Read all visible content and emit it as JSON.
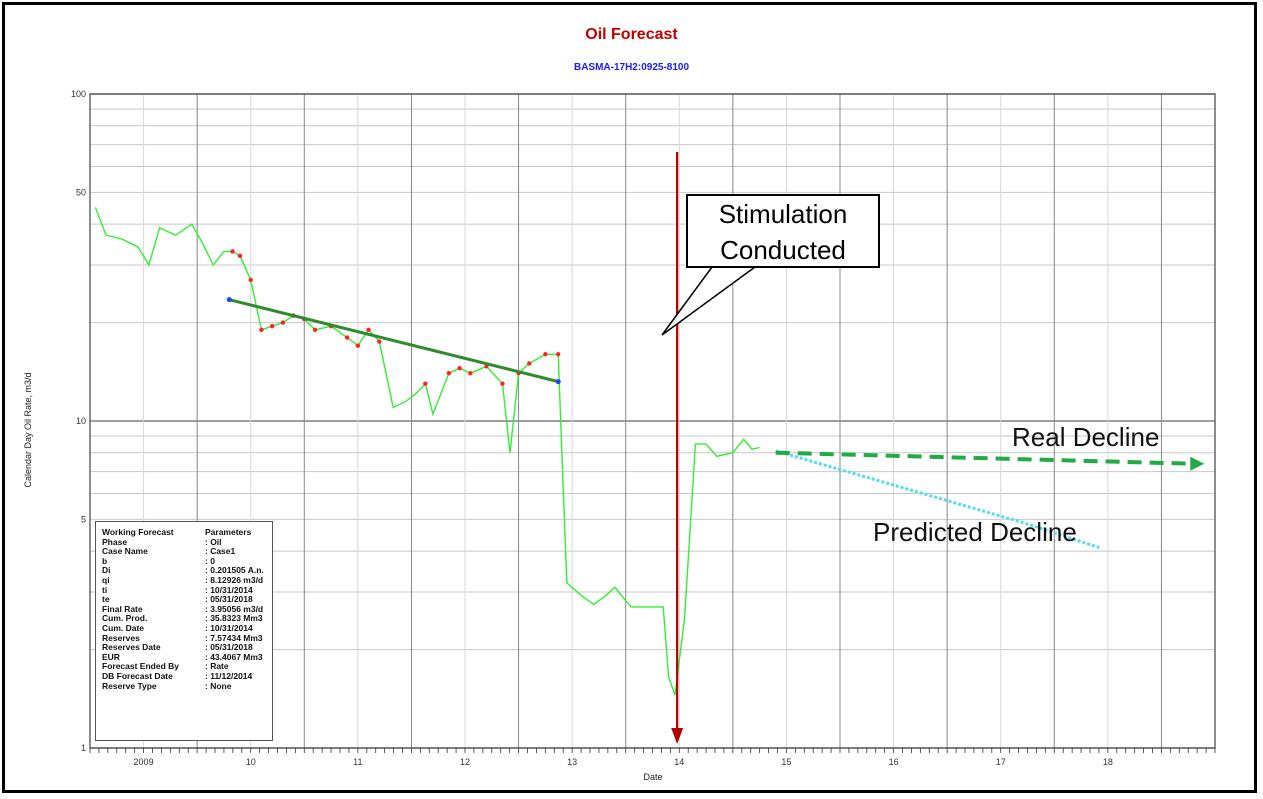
{
  "chart_data": {
    "type": "line",
    "title": "Oil Forecast",
    "subtitle": "BASMA-17H2:0925-8100",
    "xlabel": "Date",
    "ylabel": "Calendar Day Oil Rate, m3/d",
    "y_scale": "log",
    "ylim": [
      1,
      100
    ],
    "xlim": [
      2008.5,
      2019.0
    ],
    "y_tick_labels": [
      "1",
      "5",
      "10",
      "50",
      "100"
    ],
    "x_tick_labels": [
      "2009",
      "10",
      "11",
      "12",
      "13",
      "14",
      "15",
      "16",
      "17",
      "18"
    ],
    "series": [
      {
        "color": "#33ee33",
        "points": [
          [
            2008.55,
            45
          ],
          [
            2008.65,
            37
          ],
          [
            2008.8,
            36
          ],
          [
            2008.95,
            34
          ],
          [
            2009.05,
            30
          ],
          [
            2009.15,
            39
          ],
          [
            2009.3,
            37
          ],
          [
            2009.45,
            40
          ],
          [
            2009.55,
            35
          ],
          [
            2009.65,
            30
          ],
          [
            2009.75,
            33
          ],
          [
            2009.83,
            33
          ],
          [
            2009.9,
            32
          ],
          [
            2010.0,
            27
          ],
          [
            2010.1,
            19
          ],
          [
            2010.2,
            19.5
          ],
          [
            2010.3,
            20
          ],
          [
            2010.4,
            21
          ],
          [
            2010.5,
            20.5
          ],
          [
            2010.6,
            19
          ],
          [
            2010.75,
            19.5
          ],
          [
            2010.9,
            18
          ],
          [
            2011.0,
            17
          ],
          [
            2011.1,
            19
          ],
          [
            2011.2,
            17.5
          ],
          [
            2011.33,
            11
          ],
          [
            2011.45,
            11.5
          ],
          [
            2011.55,
            12.2
          ],
          [
            2011.63,
            13
          ],
          [
            2011.7,
            10.5
          ],
          [
            2011.85,
            14
          ],
          [
            2011.95,
            14.5
          ],
          [
            2012.05,
            14
          ],
          [
            2012.2,
            14.7
          ],
          [
            2012.35,
            13
          ],
          [
            2012.42,
            8
          ],
          [
            2012.5,
            14
          ],
          [
            2012.6,
            15
          ],
          [
            2012.75,
            16
          ],
          [
            2012.87,
            16
          ],
          [
            2012.95,
            3.2
          ],
          [
            2013.1,
            2.9
          ],
          [
            2013.2,
            2.75
          ],
          [
            2013.3,
            2.9
          ],
          [
            2013.4,
            3.1
          ],
          [
            2013.47,
            2.9
          ],
          [
            2013.55,
            2.7
          ],
          [
            2013.75,
            2.7
          ],
          [
            2013.85,
            2.7
          ],
          [
            2013.9,
            1.65
          ],
          [
            2013.96,
            1.45
          ],
          [
            2014.05,
            2.5
          ],
          [
            2014.15,
            8.5
          ],
          [
            2014.25,
            8.5
          ],
          [
            2014.35,
            7.8
          ],
          [
            2014.5,
            8.0
          ],
          [
            2014.6,
            8.8
          ],
          [
            2014.68,
            8.2
          ],
          [
            2014.75,
            8.3
          ]
        ]
      },
      {
        "color": "#ff2222",
        "points": [
          [
            2009.83,
            33
          ],
          [
            2009.9,
            32
          ],
          [
            2010.0,
            27
          ],
          [
            2010.1,
            19
          ],
          [
            2010.2,
            19.5
          ],
          [
            2010.3,
            20
          ],
          [
            2010.4,
            21
          ],
          [
            2010.5,
            20.5
          ],
          [
            2010.6,
            19
          ],
          [
            2010.75,
            19.5
          ],
          [
            2010.9,
            18
          ],
          [
            2011.0,
            17
          ],
          [
            2011.1,
            19
          ],
          [
            2011.2,
            17.5
          ],
          [
            2011.63,
            13
          ],
          [
            2011.85,
            14
          ],
          [
            2011.95,
            14.5
          ],
          [
            2012.05,
            14
          ],
          [
            2012.2,
            14.7
          ],
          [
            2012.35,
            13
          ],
          [
            2012.5,
            14
          ],
          [
            2012.6,
            15
          ],
          [
            2012.75,
            16
          ],
          [
            2012.87,
            16
          ]
        ]
      },
      {
        "color": "#2e8b2e",
        "points": [
          [
            2009.8,
            23.5
          ],
          [
            2012.87,
            13.2
          ]
        ]
      },
      {
        "color": "#55dde8",
        "points": [
          [
            2014.9,
            8.1
          ],
          [
            2017.2,
            4.9
          ],
          [
            2017.92,
            4.1
          ]
        ]
      }
    ],
    "legend": null,
    "annotations": [
      {
        "text": "Stimulation Conducted",
        "type": "callout"
      },
      {
        "text": "Real Decline",
        "type": "arrow"
      },
      {
        "text": "Predicted Decline",
        "type": "label"
      }
    ],
    "event_marker_x": 2013.98,
    "real_decline_points": [
      [
        2014.9,
        8.0
      ],
      [
        2018.9,
        7.4
      ]
    ]
  },
  "callouts": {
    "stim_line1": "Stimulation",
    "stim_line2": "Conducted",
    "real_decline": "Real Decline",
    "predicted_decline": "Predicted Decline"
  },
  "params": [
    {
      "k": "Working Forecast",
      "v": "Parameters"
    },
    {
      "k": "Phase",
      "v": ": Oil"
    },
    {
      "k": "Case Name",
      "v": ": Case1"
    },
    {
      "k": "b",
      "v": ": 0"
    },
    {
      "k": "Di",
      "v": ": 0.201505 A.n."
    },
    {
      "k": "qi",
      "v": ": 8.12926 m3/d"
    },
    {
      "k": "ti",
      "v": ": 10/31/2014"
    },
    {
      "k": "te",
      "v": ": 05/31/2018"
    },
    {
      "k": "Final Rate",
      "v": ": 3.95056 m3/d"
    },
    {
      "k": "Cum. Prod.",
      "v": ": 35.8323 Mm3"
    },
    {
      "k": "Cum. Date",
      "v": ": 10/31/2014"
    },
    {
      "k": "Reserves",
      "v": ": 7.57434 Mm3"
    },
    {
      "k": "Reserves Date",
      "v": ": 05/31/2018"
    },
    {
      "k": "EUR",
      "v": ": 43.4067 Mm3"
    },
    {
      "k": "Forecast Ended By",
      "v": ": Rate"
    },
    {
      "k": "DB Forecast Date",
      "v": ": 11/12/2014"
    },
    {
      "k": "Reserve Type",
      "v": ": None"
    }
  ]
}
